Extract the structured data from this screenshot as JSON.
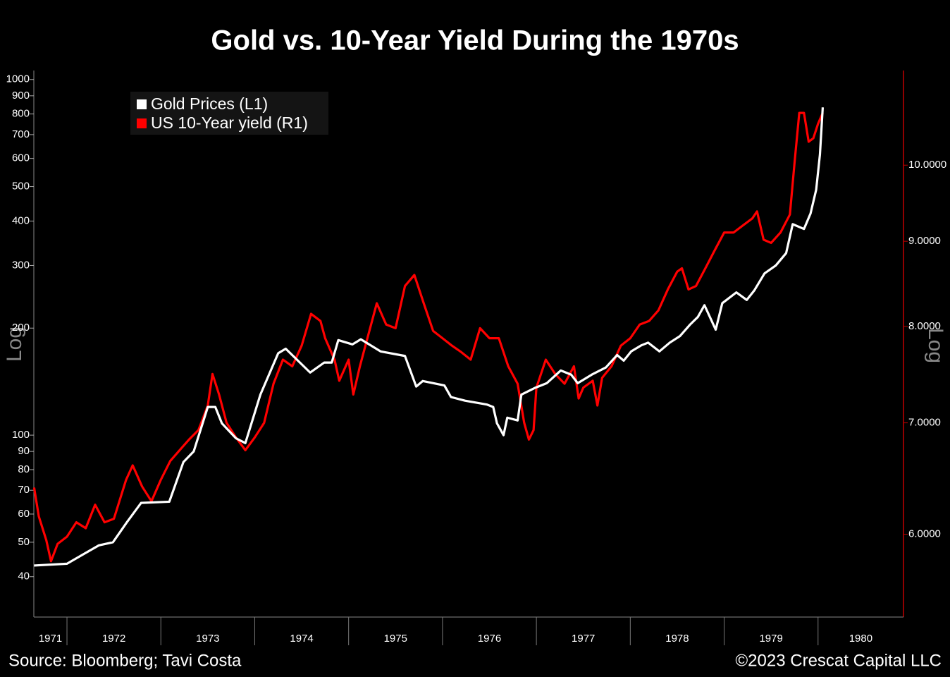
{
  "chart_data": {
    "type": "line",
    "title": "Gold vs. 10-Year Yield During the 1970s",
    "source": "Source: Bloomberg; Tavi Costa",
    "copyright": "©2023 Crescat Capital LLC",
    "ylabel": "Log",
    "y2label": "Log",
    "log_scale": true,
    "legend": "upper left",
    "xlim": [
      1971.647,
      1980.91
    ],
    "xticks": [
      1971,
      1972,
      1973,
      1974,
      1975,
      1976,
      1977,
      1978,
      1979,
      1980
    ],
    "ylim": [
      30.8,
      1060
    ],
    "yticks": [
      40,
      50,
      60,
      70,
      80,
      90,
      100,
      200,
      300,
      400,
      500,
      600,
      700,
      800,
      900,
      1000
    ],
    "y2lim": [
      5.35,
      11.4
    ],
    "y2ticks": [
      {
        "value": 6,
        "label": "6.0000"
      },
      {
        "value": 7,
        "label": "7.0000"
      },
      {
        "value": 8,
        "label": "8.0000"
      },
      {
        "value": 9,
        "label": "9.0000"
      },
      {
        "value": 10,
        "label": "10.0000"
      }
    ],
    "series": [
      {
        "name": "Gold Prices (L1)",
        "color": "#ffffff",
        "axis": "y",
        "x": [
          1971.65,
          1972.0,
          1972.19,
          1972.34,
          1972.49,
          1972.64,
          1972.79,
          1973.09,
          1973.24,
          1973.35,
          1973.5,
          1973.58,
          1973.65,
          1973.8,
          1973.9,
          1974.06,
          1974.25,
          1974.33,
          1974.59,
          1974.74,
          1974.82,
          1974.89,
          1975.04,
          1975.13,
          1975.34,
          1975.6,
          1975.72,
          1975.79,
          1976.02,
          1976.09,
          1976.24,
          1976.47,
          1976.54,
          1976.58,
          1976.65,
          1976.69,
          1976.8,
          1976.84,
          1976.99,
          1977.11,
          1977.26,
          1977.37,
          1977.44,
          1977.59,
          1977.74,
          1977.86,
          1977.93,
          1978.01,
          1978.12,
          1978.19,
          1978.31,
          1978.42,
          1978.53,
          1978.64,
          1978.72,
          1978.79,
          1978.91,
          1978.98,
          1979.13,
          1979.24,
          1979.32,
          1979.43,
          1979.55,
          1979.66,
          1979.73,
          1979.85,
          1979.92,
          1979.98,
          1980.02,
          1980.05
        ],
        "values": [
          43,
          43.5,
          46.5,
          49,
          50,
          57,
          64.5,
          65,
          84,
          90,
          120,
          120,
          108,
          98,
          95,
          130,
          170,
          175,
          150,
          160,
          160,
          185,
          180,
          186,
          172,
          167,
          137,
          142,
          138,
          128,
          125,
          122,
          120,
          108,
          100,
          112,
          110,
          130,
          136,
          140,
          152,
          148,
          140,
          148,
          155,
          168,
          162,
          172,
          179,
          182,
          172,
          182,
          190,
          205,
          215,
          232,
          198,
          235,
          252,
          240,
          255,
          285,
          300,
          325,
          392,
          380,
          420,
          490,
          615,
          835
        ]
      },
      {
        "name": "US 10-Year yield (R1)",
        "color": "#ff0000",
        "axis": "y2",
        "x": [
          1971.65,
          1971.7,
          1971.78,
          1971.83,
          1971.9,
          1972.0,
          1972.1,
          1972.2,
          1972.3,
          1972.4,
          1972.5,
          1972.63,
          1972.7,
          1972.8,
          1972.9,
          1973.0,
          1973.1,
          1973.2,
          1973.3,
          1973.4,
          1973.5,
          1973.55,
          1973.62,
          1973.7,
          1973.8,
          1973.9,
          1974.0,
          1974.1,
          1974.2,
          1974.3,
          1974.4,
          1974.5,
          1974.6,
          1974.7,
          1974.75,
          1974.85,
          1974.9,
          1975.0,
          1975.05,
          1975.12,
          1975.2,
          1975.3,
          1975.4,
          1975.5,
          1975.6,
          1975.7,
          1975.8,
          1975.9,
          1976.0,
          1976.1,
          1976.2,
          1976.3,
          1976.4,
          1976.5,
          1976.6,
          1976.7,
          1976.8,
          1976.87,
          1976.92,
          1976.97,
          1977.0,
          1977.1,
          1977.2,
          1977.3,
          1977.4,
          1977.45,
          1977.5,
          1977.6,
          1977.65,
          1977.7,
          1977.8,
          1977.9,
          1978.0,
          1978.1,
          1978.2,
          1978.3,
          1978.4,
          1978.5,
          1978.55,
          1978.62,
          1978.7,
          1978.8,
          1978.9,
          1979.0,
          1979.1,
          1979.2,
          1979.3,
          1979.35,
          1979.42,
          1979.5,
          1979.6,
          1979.7,
          1979.75,
          1979.8,
          1979.85,
          1979.9,
          1979.95,
          1980.0,
          1980.05
        ],
        "values": [
          6.4,
          6.15,
          5.95,
          5.78,
          5.92,
          5.98,
          6.1,
          6.05,
          6.25,
          6.1,
          6.13,
          6.47,
          6.6,
          6.41,
          6.28,
          6.47,
          6.64,
          6.74,
          6.84,
          6.93,
          7.17,
          7.49,
          7.28,
          7.0,
          6.86,
          6.74,
          6.86,
          7.0,
          7.39,
          7.64,
          7.57,
          7.79,
          8.14,
          8.06,
          7.87,
          7.64,
          7.42,
          7.64,
          7.28,
          7.57,
          7.87,
          8.26,
          8.02,
          7.98,
          8.46,
          8.59,
          8.26,
          7.95,
          7.87,
          7.79,
          7.72,
          7.64,
          7.98,
          7.87,
          7.87,
          7.57,
          7.39,
          7.0,
          6.84,
          6.93,
          7.35,
          7.64,
          7.49,
          7.39,
          7.57,
          7.24,
          7.35,
          7.42,
          7.17,
          7.45,
          7.57,
          7.79,
          7.87,
          8.02,
          8.06,
          8.18,
          8.42,
          8.63,
          8.67,
          8.42,
          8.46,
          8.67,
          8.89,
          9.11,
          9.11,
          9.2,
          9.29,
          9.38,
          9.02,
          8.98,
          9.11,
          9.34,
          10.04,
          10.75,
          10.75,
          10.33,
          10.38,
          10.59,
          10.75
        ]
      }
    ]
  }
}
